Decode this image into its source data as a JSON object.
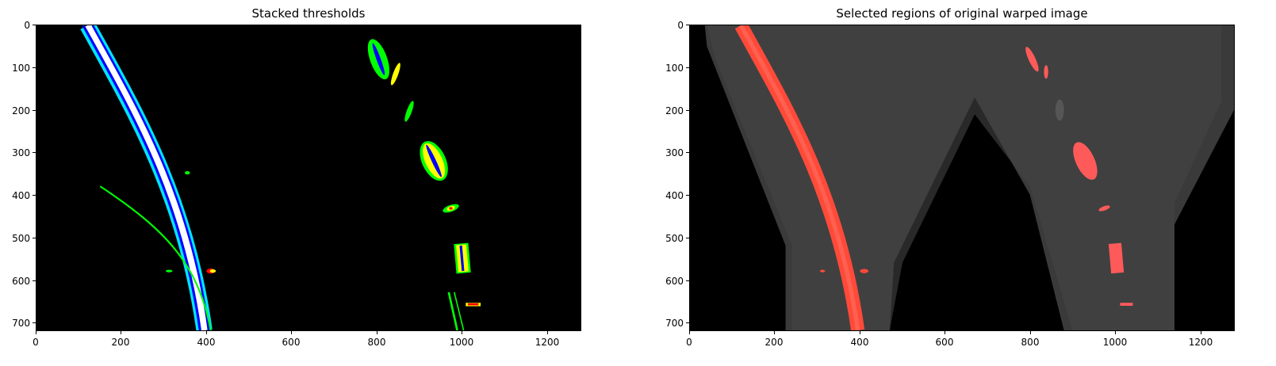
{
  "figure": {
    "panels": [
      {
        "title": "Stacked thresholds",
        "xticks": [
          "0",
          "200",
          "400",
          "600",
          "800",
          "1000",
          "1200"
        ],
        "yticks": [
          "0",
          "100",
          "200",
          "300",
          "400",
          "500",
          "600",
          "700"
        ]
      },
      {
        "title": "Selected regions of original warped image",
        "xticks": [
          "0",
          "200",
          "400",
          "600",
          "800",
          "1000",
          "1200"
        ],
        "yticks": [
          "0",
          "100",
          "200",
          "300",
          "400",
          "500",
          "600",
          "700"
        ]
      }
    ],
    "image_extent": {
      "x_max": 1280,
      "y_max": 720
    },
    "colors": {
      "background": "#000000",
      "threshold_cyan": "#00e5ff",
      "threshold_blue": "#0000ff",
      "threshold_green": "#00ff00",
      "threshold_yellow": "#ffff00",
      "threshold_red": "#ff0000",
      "overlay_red": "#ff4a3a",
      "road_gray": "#3a3a3a"
    }
  }
}
